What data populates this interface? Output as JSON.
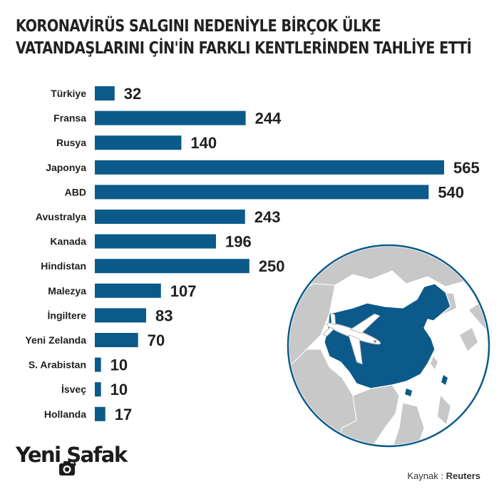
{
  "title": {
    "line1": "KORONAVİRÜS SALGINI NEDENİYLE BİRÇOK ÜLKE",
    "line2": "VATANDAŞLARINI ÇİN'İN FARKLI KENTLERİNDEN TAHLİYE ETTİ"
  },
  "chart_data": {
    "type": "bar",
    "orientation": "horizontal",
    "categories": [
      "Türkiye",
      "Fransa",
      "Rusya",
      "Japonya",
      "ABD",
      "Avustralya",
      "Kanada",
      "Hindistan",
      "Malezya",
      "İngiltere",
      "Yeni Zelanda",
      "S. Arabistan",
      "İsveç",
      "Hollanda"
    ],
    "values": [
      32,
      244,
      140,
      565,
      540,
      243,
      196,
      250,
      107,
      83,
      70,
      10,
      10,
      17
    ],
    "xlim": [
      0,
      565
    ],
    "grid": false,
    "bar_color": "#0b5a8a",
    "data_labels": true
  },
  "logo": {
    "text": "Yeni Şafak"
  },
  "source": {
    "label": "Kaynak :",
    "value": "Reuters"
  },
  "colors": {
    "bar": "#0b5a8a",
    "text": "#1f1f1f",
    "map_ocean": "#ffffff",
    "map_land": "#c8c8c8",
    "map_highlight": "#0b5a8a",
    "map_border": "#0b5a8a"
  },
  "icons": {
    "map": "china-map-with-airplane",
    "logo_camera": "camera-icon"
  }
}
